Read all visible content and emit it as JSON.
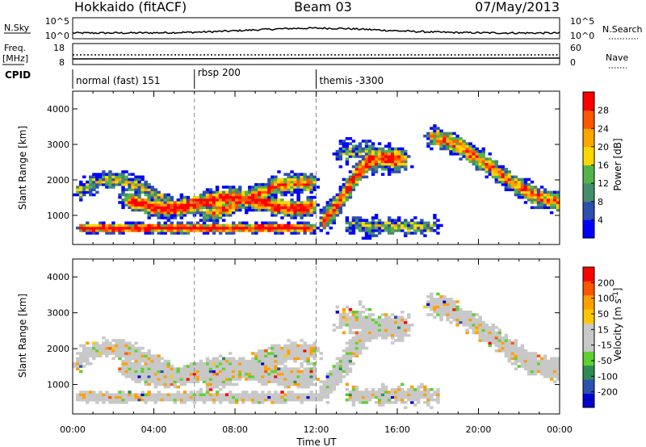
{
  "header": {
    "title_left": "Hokkaido (fitACF)",
    "title_center": "Beam 03",
    "title_right": "07/May/2013"
  },
  "sky_panel": {
    "left_label": "N.Sky",
    "right_label": "N.Search",
    "left_ticks": [
      "10^5",
      "10^0"
    ],
    "right_ticks": [
      "10^5",
      "10^0"
    ]
  },
  "freq_panel": {
    "left_label_line1": "Freq.",
    "left_label_line2": "[MHz]",
    "right_label": "Nave",
    "left_ticks": [
      "18",
      "8"
    ],
    "right_ticks": [
      "60",
      "0"
    ]
  },
  "cpid_panel": {
    "label": "CPID",
    "segments": [
      {
        "label": "normal (fast) 151",
        "start_hour": 0
      },
      {
        "label": "rbsp 200",
        "start_hour": 6
      },
      {
        "label": "themis -3300",
        "start_hour": 12
      }
    ]
  },
  "colors": {
    "power_scale": [
      "#0000ff",
      "#2c4fb0",
      "#458c6c",
      "#54b44a",
      "#ffd700",
      "#ffa500",
      "#ff5500",
      "#ff0000"
    ],
    "velocity_scale": [
      "#ff0000",
      "#ff5500",
      "#ffa000",
      "#ffc800",
      "#c8c8c8",
      "#c8c8c8",
      "#60d030",
      "#2e8b57",
      "#2c4fb0",
      "#0000cd"
    ]
  },
  "chart_data": [
    {
      "type": "heatmap",
      "name": "power",
      "ylabel": "Slant Range [km]",
      "yticks": [
        1000,
        2000,
        3000,
        4000
      ],
      "ylim": [
        180,
        4500
      ],
      "colorbar_label": "Power [dB]",
      "colorbar_ticks": [
        "4",
        "8",
        "12",
        "16",
        "20",
        "24",
        "28"
      ]
    },
    {
      "type": "heatmap",
      "name": "velocity",
      "xlabel": "Time UT",
      "xticks": [
        "00:00",
        "04:00",
        "08:00",
        "12:00",
        "16:00",
        "20:00",
        "00:00"
      ],
      "xlim": [
        0,
        24
      ],
      "ylabel": "Slant Range [km]",
      "yticks": [
        1000,
        2000,
        3000,
        4000
      ],
      "ylim": [
        180,
        4500
      ],
      "colorbar_label": "Velocity [m s^-1]",
      "colorbar_ticks": [
        "200",
        "100",
        "50",
        "15",
        "-15",
        "-50",
        "-100",
        "-200"
      ]
    }
  ]
}
